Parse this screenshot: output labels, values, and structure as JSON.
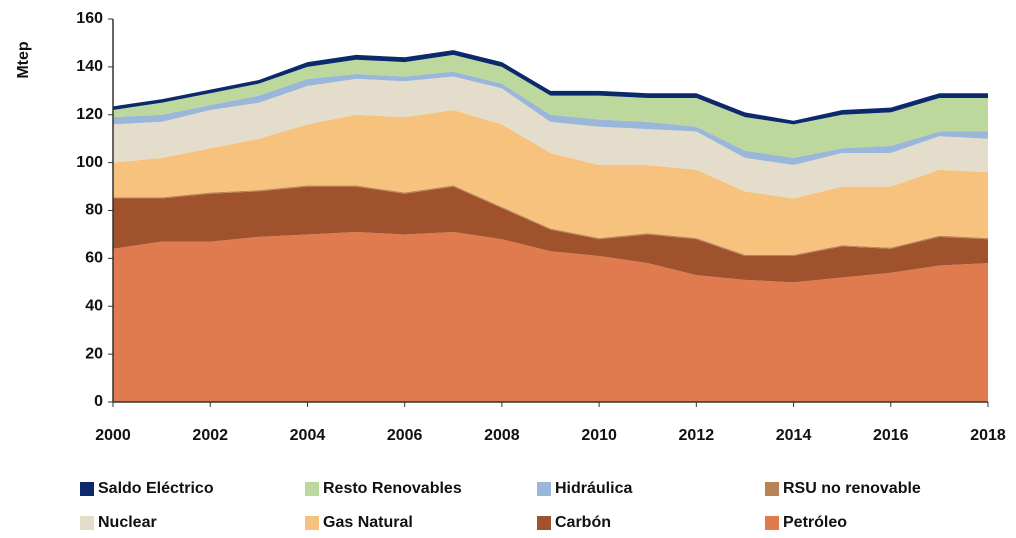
{
  "chart_data": {
    "type": "stacked_area",
    "y_label": "Mtep",
    "x": [
      2000,
      2001,
      2002,
      2003,
      2004,
      2005,
      2006,
      2007,
      2008,
      2009,
      2010,
      2011,
      2012,
      2013,
      2014,
      2015,
      2016,
      2017,
      2018
    ],
    "xlim": [
      2000,
      2018
    ],
    "xticks": [
      2000,
      2002,
      2004,
      2006,
      2008,
      2010,
      2012,
      2014,
      2016,
      2018
    ],
    "ylim": [
      0,
      160
    ],
    "yticks": [
      0,
      20,
      40,
      60,
      80,
      100,
      120,
      140,
      160
    ],
    "series": [
      {
        "name": "Petróleo",
        "color": "#e07b4f",
        "values": [
          64,
          67,
          67,
          69,
          70,
          71,
          70,
          71,
          68,
          63,
          61,
          58,
          53,
          51,
          50,
          52,
          54,
          57,
          58
        ]
      },
      {
        "name": "Carbón",
        "color": "#a0522d",
        "values": [
          21,
          18,
          20,
          19,
          20,
          19,
          17,
          19,
          13,
          9,
          7,
          12,
          15,
          10,
          11,
          13,
          10,
          12,
          10
        ]
      },
      {
        "name": "RSU no renovable",
        "color": "#b88457",
        "values": [
          0.5,
          0.5,
          0.5,
          0.5,
          0.5,
          0.5,
          0.5,
          0.5,
          0.5,
          0.5,
          0.5,
          0.5,
          0.5,
          0.5,
          0.5,
          0.5,
          0.5,
          0.5,
          0.5
        ]
      },
      {
        "name": "Gas Natural",
        "color": "#f6c27d",
        "values": [
          14.5,
          16.5,
          18.5,
          21.5,
          25.5,
          29.5,
          31.5,
          31.5,
          34.5,
          31.5,
          30.5,
          28.5,
          28.5,
          26.5,
          23.5,
          24.5,
          25.5,
          27.5,
          27.5
        ]
      },
      {
        "name": "Nuclear",
        "color": "#e4ddcc",
        "values": [
          16,
          15,
          16,
          15,
          16,
          15,
          15,
          14,
          15,
          13,
          16,
          15,
          16,
          14,
          14,
          14,
          14,
          14,
          14
        ]
      },
      {
        "name": "Hidráulica",
        "color": "#9ab7d9",
        "values": [
          3,
          3,
          2,
          3,
          3,
          2,
          2,
          2,
          2,
          3,
          3,
          3,
          2,
          3,
          3,
          2,
          3,
          2,
          3
        ]
      },
      {
        "name": "Resto Renovables",
        "color": "#bdd89c",
        "values": [
          3,
          5,
          5,
          5,
          5,
          6,
          6,
          7,
          7,
          8,
          10,
          10,
          12,
          14,
          14,
          14,
          14,
          14,
          14
        ]
      },
      {
        "name": "Saldo Eléctrico",
        "color": "#0c2a6b",
        "values": [
          1.5,
          1.5,
          1.5,
          1.5,
          2,
          2,
          2,
          2,
          2,
          2,
          2,
          2,
          2,
          2,
          1.5,
          2,
          2,
          2,
          2
        ]
      }
    ]
  }
}
